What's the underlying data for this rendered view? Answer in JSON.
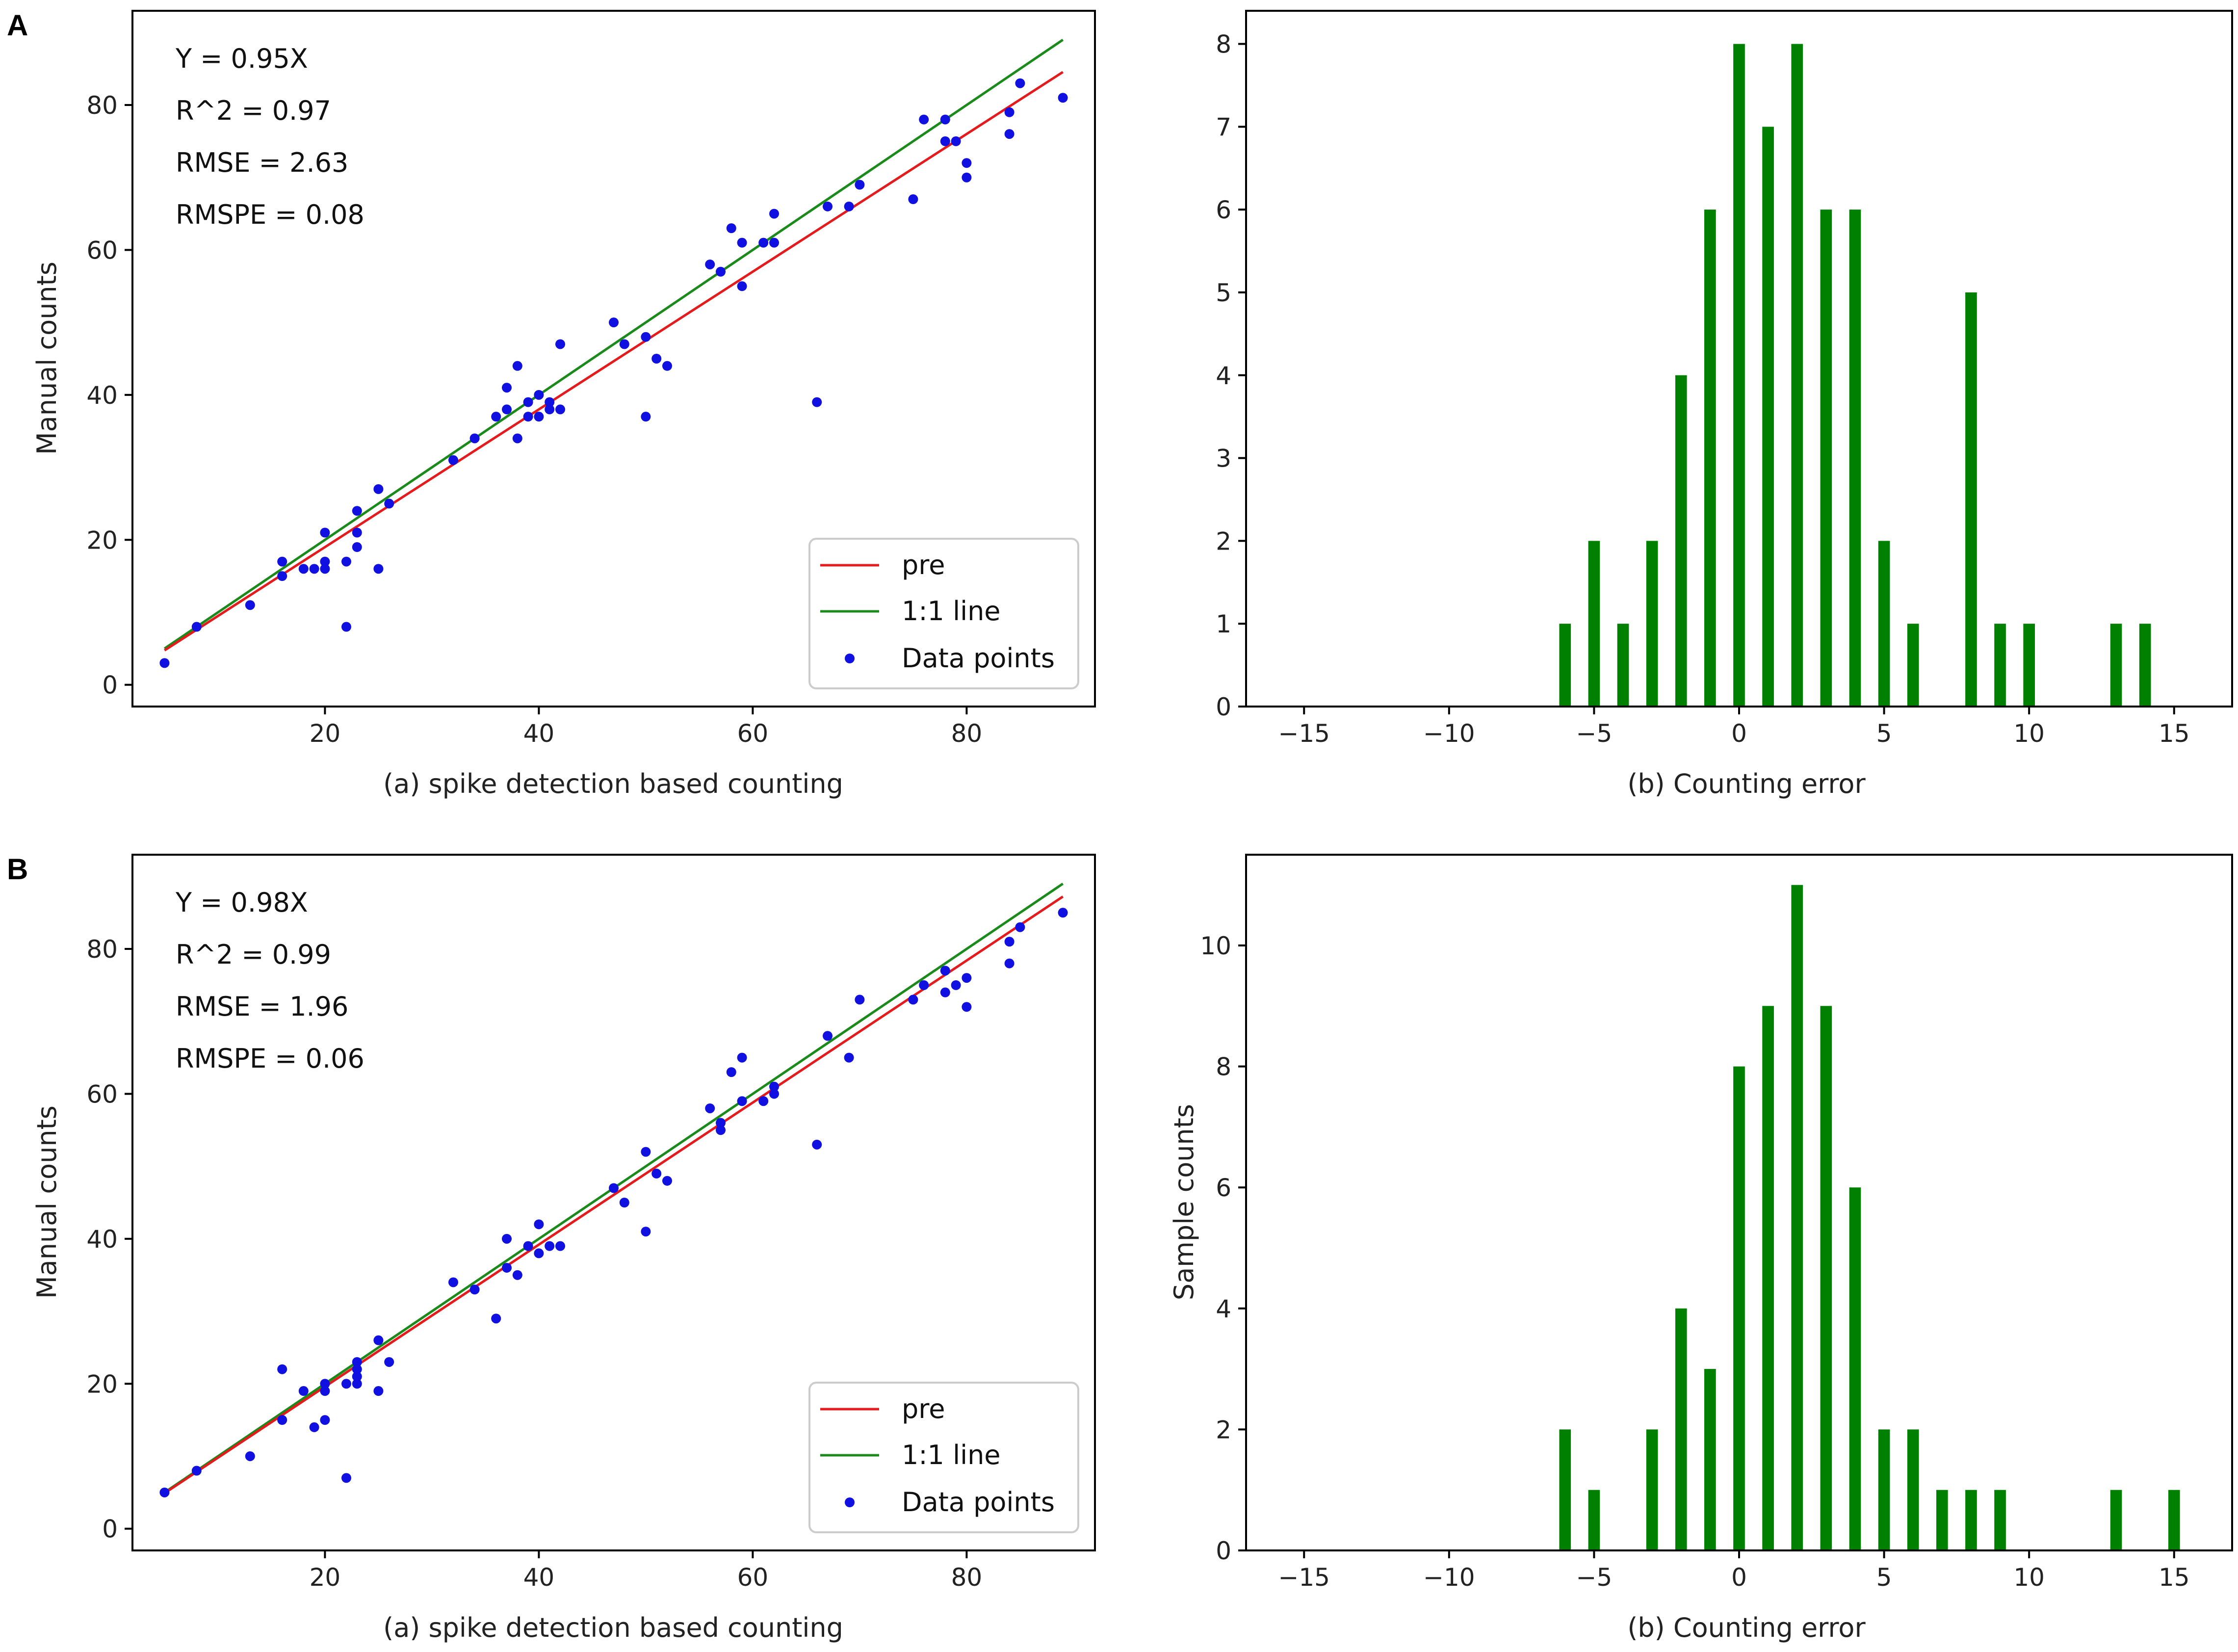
{
  "panels": [
    {
      "label": "A",
      "scatter": {
        "stats": [
          "Y = 0.95X",
          "R^2 = 0.97",
          "RMSE = 2.63",
          "RMSPE = 0.08"
        ],
        "xlabel": "(a) spike detection based counting",
        "ylabel": "Manual counts",
        "legend": [
          "pre",
          "1:1 line",
          "Data points"
        ]
      },
      "hist": {
        "xlabel": "(b)  Counting error",
        "ylabel": ""
      }
    },
    {
      "label": "B",
      "scatter": {
        "stats": [
          "Y = 0.98X",
          "R^2 = 0.99",
          "RMSE = 1.96",
          "RMSPE = 0.06"
        ],
        "xlabel": "(a) spike detection based counting",
        "ylabel": "Manual counts",
        "legend": [
          "pre",
          "1:1 line",
          "Data points"
        ]
      },
      "hist": {
        "xlabel": "(b)  Counting error",
        "ylabel": "Sample counts"
      }
    }
  ],
  "colors": {
    "fit": "#e41a1c",
    "oneToOne": "#1a8a1a",
    "points": "#1010e0",
    "bars": "#008000"
  },
  "chart_data": [
    {
      "type": "scatter",
      "panel": "A",
      "title": "",
      "xlabel": "(a) spike detection based counting",
      "ylabel": "Manual counts",
      "xlim": [
        2,
        92
      ],
      "ylim": [
        -3,
        93
      ],
      "xticks": [
        20,
        40,
        60,
        80
      ],
      "yticks": [
        0,
        20,
        40,
        60,
        80
      ],
      "lines": [
        {
          "name": "pre",
          "slope": 0.95
        },
        {
          "name": "1:1 line",
          "slope": 1.0
        }
      ],
      "points": [
        [
          5,
          3
        ],
        [
          8,
          8
        ],
        [
          13,
          11
        ],
        [
          16,
          15
        ],
        [
          16,
          17
        ],
        [
          18,
          16
        ],
        [
          19,
          16
        ],
        [
          20,
          16
        ],
        [
          20,
          17
        ],
        [
          20,
          21
        ],
        [
          22,
          8
        ],
        [
          22,
          17
        ],
        [
          23,
          19
        ],
        [
          23,
          21
        ],
        [
          23,
          24
        ],
        [
          25,
          16
        ],
        [
          25,
          27
        ],
        [
          26,
          25
        ],
        [
          32,
          31
        ],
        [
          34,
          34
        ],
        [
          36,
          37
        ],
        [
          37,
          38
        ],
        [
          37,
          41
        ],
        [
          38,
          34
        ],
        [
          38,
          44
        ],
        [
          39,
          37
        ],
        [
          39,
          39
        ],
        [
          40,
          37
        ],
        [
          40,
          40
        ],
        [
          41,
          38
        ],
        [
          41,
          39
        ],
        [
          42,
          38
        ],
        [
          42,
          47
        ],
        [
          47,
          50
        ],
        [
          48,
          47
        ],
        [
          50,
          37
        ],
        [
          50,
          48
        ],
        [
          51,
          45
        ],
        [
          52,
          44
        ],
        [
          56,
          58
        ],
        [
          57,
          57
        ],
        [
          58,
          63
        ],
        [
          59,
          55
        ],
        [
          59,
          61
        ],
        [
          61,
          61
        ],
        [
          62,
          61
        ],
        [
          62,
          65
        ],
        [
          66,
          39
        ],
        [
          67,
          66
        ],
        [
          69,
          66
        ],
        [
          70,
          69
        ],
        [
          75,
          67
        ],
        [
          76,
          78
        ],
        [
          78,
          75
        ],
        [
          78,
          78
        ],
        [
          79,
          75
        ],
        [
          80,
          70
        ],
        [
          80,
          72
        ],
        [
          84,
          76
        ],
        [
          84,
          79
        ],
        [
          85,
          83
        ],
        [
          89,
          81
        ]
      ]
    },
    {
      "type": "bar",
      "panel": "A",
      "title": "",
      "xlabel": "(b)  Counting error",
      "ylabel": "",
      "xlim": [
        -17,
        17
      ],
      "ylim": [
        0,
        8.4
      ],
      "xticks": [
        -15,
        -10,
        -5,
        0,
        5,
        10,
        15
      ],
      "yticks": [
        0,
        1,
        2,
        3,
        4,
        5,
        6,
        7,
        8
      ],
      "categories": [
        -6,
        -5,
        -4,
        -3,
        -2,
        -1,
        0,
        1,
        2,
        3,
        4,
        5,
        6,
        8,
        9,
        10,
        13,
        14
      ],
      "values": [
        1,
        2,
        1,
        2,
        4,
        6,
        8,
        7,
        8,
        6,
        6,
        2,
        1,
        5,
        1,
        1,
        1,
        1
      ]
    },
    {
      "type": "scatter",
      "panel": "B",
      "title": "",
      "xlabel": "(a) spike detection based counting",
      "ylabel": "Manual counts",
      "xlim": [
        2,
        92
      ],
      "ylim": [
        -3,
        93
      ],
      "xticks": [
        20,
        40,
        60,
        80
      ],
      "yticks": [
        0,
        20,
        40,
        60,
        80
      ],
      "lines": [
        {
          "name": "pre",
          "slope": 0.98
        },
        {
          "name": "1:1 line",
          "slope": 1.0
        }
      ],
      "points": [
        [
          5,
          5
        ],
        [
          8,
          8
        ],
        [
          13,
          10
        ],
        [
          16,
          15
        ],
        [
          16,
          22
        ],
        [
          18,
          19
        ],
        [
          19,
          14
        ],
        [
          20,
          15
        ],
        [
          20,
          19
        ],
        [
          20,
          20
        ],
        [
          22,
          7
        ],
        [
          22,
          20
        ],
        [
          23,
          20
        ],
        [
          23,
          21
        ],
        [
          23,
          22
        ],
        [
          23,
          23
        ],
        [
          25,
          19
        ],
        [
          25,
          26
        ],
        [
          26,
          23
        ],
        [
          32,
          34
        ],
        [
          34,
          33
        ],
        [
          36,
          29
        ],
        [
          37,
          36
        ],
        [
          37,
          40
        ],
        [
          38,
          35
        ],
        [
          39,
          39
        ],
        [
          40,
          38
        ],
        [
          40,
          42
        ],
        [
          41,
          39
        ],
        [
          42,
          39
        ],
        [
          47,
          47
        ],
        [
          48,
          45
        ],
        [
          50,
          41
        ],
        [
          50,
          52
        ],
        [
          51,
          49
        ],
        [
          52,
          48
        ],
        [
          56,
          58
        ],
        [
          57,
          55
        ],
        [
          57,
          56
        ],
        [
          58,
          63
        ],
        [
          59,
          59
        ],
        [
          59,
          65
        ],
        [
          61,
          59
        ],
        [
          62,
          60
        ],
        [
          62,
          61
        ],
        [
          66,
          53
        ],
        [
          67,
          68
        ],
        [
          69,
          65
        ],
        [
          70,
          73
        ],
        [
          75,
          73
        ],
        [
          76,
          75
        ],
        [
          78,
          74
        ],
        [
          78,
          77
        ],
        [
          79,
          75
        ],
        [
          80,
          72
        ],
        [
          80,
          76
        ],
        [
          84,
          78
        ],
        [
          84,
          81
        ],
        [
          85,
          83
        ],
        [
          89,
          85
        ]
      ]
    },
    {
      "type": "bar",
      "panel": "B",
      "title": "",
      "xlabel": "(b)  Counting error",
      "ylabel": "Sample counts",
      "xlim": [
        -17,
        17
      ],
      "ylim": [
        0,
        11.5
      ],
      "xticks": [
        -15,
        -10,
        -5,
        0,
        5,
        10,
        15
      ],
      "yticks": [
        0,
        2,
        4,
        6,
        8,
        10
      ],
      "categories": [
        -6,
        -5,
        -3,
        -2,
        -1,
        0,
        1,
        2,
        3,
        4,
        5,
        6,
        7,
        8,
        9,
        13,
        15
      ],
      "values": [
        2,
        1,
        2,
        4,
        3,
        8,
        9,
        11,
        9,
        6,
        2,
        2,
        1,
        1,
        1,
        1,
        1
      ]
    }
  ]
}
